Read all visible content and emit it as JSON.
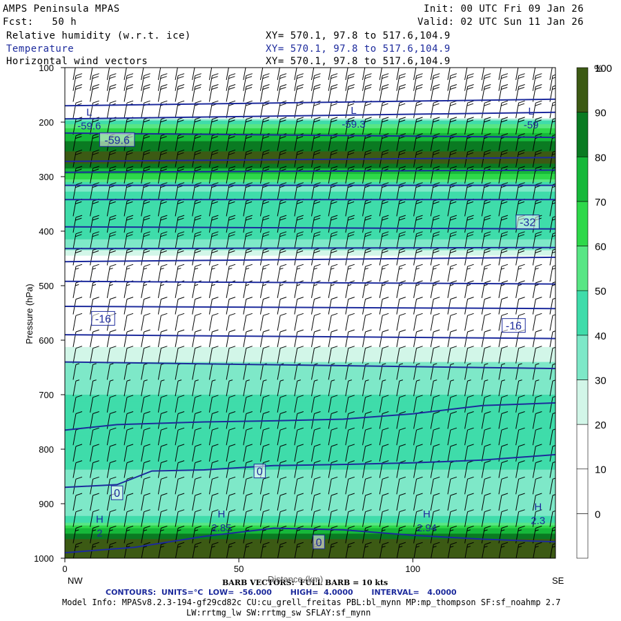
{
  "header": {
    "model": "AMPS Peninsula MPAS",
    "init": "Init: 00 UTC Fri 09 Jan 26",
    "fcst": "Fcst:   50 h",
    "valid": "Valid: 02 UTC Sun 11 Jan 26",
    "field1": "Relative humidity (w.r.t. ice)",
    "field2": "Temperature",
    "field3": "Horizontal wind vectors",
    "xy1": "XY= 570.1, 97.8 to 517.6,104.9",
    "xy2": "XY= 570.1, 97.8 to 517.6,104.9",
    "xy3": "XY= 570.1, 97.8 to 517.6,104.9"
  },
  "colors": {
    "temperature_contour": "#1c2a9c",
    "rh_scale": [
      "#ffffff",
      "#ffffff",
      "#ffffff",
      "#d2f6e8",
      "#7ee8c8",
      "#3fdcaa",
      "#58e684",
      "#2ed84a",
      "#16b83a",
      "#0a7a22",
      "#3c5a14"
    ]
  },
  "chart_data": {
    "type": "heatmap",
    "title": "Relative humidity (w.r.t. ice)",
    "ylabel": "Pressure (hPa)",
    "xlabel": "Distance (km)",
    "x_left_label": "NW",
    "x_right_label": "SE",
    "x_ticks": [
      0,
      50,
      100
    ],
    "xlim": [
      0,
      141
    ],
    "y_ticks": [
      100,
      200,
      300,
      400,
      500,
      600,
      700,
      800,
      900,
      1000
    ],
    "ylim": [
      1000,
      100
    ],
    "colorbar": {
      "unit": "%",
      "ticks": [
        0,
        10,
        20,
        30,
        40,
        50,
        60,
        70,
        80,
        90,
        100
      ],
      "levels": [
        0,
        10,
        20,
        30,
        40,
        50,
        60,
        70,
        80,
        90,
        100,
        110
      ]
    },
    "rh_profile": [
      {
        "p": 100,
        "rh": 15
      },
      {
        "p": 160,
        "rh": 10
      },
      {
        "p": 190,
        "rh": 25
      },
      {
        "p": 200,
        "rh": 55
      },
      {
        "p": 215,
        "rh": 75
      },
      {
        "p": 235,
        "rh": 90
      },
      {
        "p": 250,
        "rh": 97
      },
      {
        "p": 265,
        "rh": 105
      },
      {
        "p": 280,
        "rh": 97
      },
      {
        "p": 300,
        "rh": 75
      },
      {
        "p": 320,
        "rh": 45
      },
      {
        "p": 335,
        "rh": 55
      },
      {
        "p": 350,
        "rh": 60
      },
      {
        "p": 380,
        "rh": 58
      },
      {
        "p": 410,
        "rh": 52
      },
      {
        "p": 430,
        "rh": 45
      },
      {
        "p": 450,
        "rh": 22
      },
      {
        "p": 480,
        "rh": 12
      },
      {
        "p": 530,
        "rh": 5
      },
      {
        "p": 590,
        "rh": 12
      },
      {
        "p": 620,
        "rh": 35
      },
      {
        "p": 660,
        "rh": 44
      },
      {
        "p": 700,
        "rh": 50
      },
      {
        "p": 750,
        "rh": 55
      },
      {
        "p": 800,
        "rh": 55
      },
      {
        "p": 850,
        "rh": 48
      },
      {
        "p": 900,
        "rh": 42
      },
      {
        "p": 930,
        "rh": 52
      },
      {
        "p": 950,
        "rh": 85
      },
      {
        "p": 970,
        "rh": 105
      },
      {
        "p": 1000,
        "rh": 105
      }
    ],
    "temperature_contours": {
      "units": "°C",
      "low": -56.0,
      "high": 4.0,
      "interval": 4.0,
      "lines": [
        {
          "label": "-56",
          "x": [
            0,
            141
          ],
          "p": [
            170,
            158
          ]
        },
        {
          "label": "-52",
          "x": [
            0,
            141
          ],
          "p": [
            194,
            182
          ]
        },
        {
          "label": "-48",
          "x": [
            0,
            141
          ],
          "p": [
            220,
            228
          ]
        },
        {
          "label": "-44",
          "x": [
            0,
            141
          ],
          "p": [
            272,
            265
          ]
        },
        {
          "label": "-40",
          "x": [
            0,
            141
          ],
          "p": [
            292,
            288
          ]
        },
        {
          "label": "-36",
          "x": [
            0,
            141
          ],
          "p": [
            316,
            316
          ]
        },
        {
          "label": "-32",
          "x": [
            0,
            141
          ],
          "p": [
            342,
            342
          ]
        },
        {
          "label": "-28",
          "x": [
            0,
            141
          ],
          "p": [
            392,
            396
          ]
        },
        {
          "label": "-24",
          "x": [
            0,
            141
          ],
          "p": [
            432,
            430
          ]
        },
        {
          "label": "-20",
          "x": [
            0,
            141
          ],
          "p": [
            456,
            448
          ]
        },
        {
          "label": "-16",
          "x": [
            0,
            141
          ],
          "p": [
            492,
            497
          ]
        },
        {
          "label": "-12",
          "x": [
            0,
            141
          ],
          "p": [
            538,
            542
          ]
        },
        {
          "label": "-8",
          "x": [
            0,
            141
          ],
          "p": [
            590,
            597
          ]
        },
        {
          "label": "-4",
          "x": [
            0,
            141
          ],
          "p": [
            640,
            652
          ]
        },
        {
          "label": "0",
          "x": [
            0,
            15,
            40,
            60,
            80,
            100,
            120,
            141
          ],
          "p": [
            765,
            755,
            750,
            748,
            745,
            735,
            720,
            715
          ]
        },
        {
          "label": "0",
          "x": [
            0,
            15,
            25,
            40,
            60,
            80,
            100,
            120,
            141
          ],
          "p": [
            870,
            865,
            840,
            838,
            830,
            828,
            825,
            820,
            810
          ]
        },
        {
          "label": "4",
          "x": [
            0,
            20,
            40,
            60,
            80,
            100,
            120,
            141
          ],
          "p": [
            990,
            980,
            960,
            945,
            948,
            958,
            965,
            970
          ]
        }
      ],
      "box_labels": [
        {
          "text": "-59.6",
          "x": 15,
          "p": 232
        },
        {
          "text": "-32",
          "x": 133,
          "p": 383
        },
        {
          "text": "-16",
          "x": 11,
          "p": 560
        },
        {
          "text": "-16",
          "x": 129,
          "p": 573
        },
        {
          "text": "0",
          "x": 15,
          "p": 880
        },
        {
          "text": "0",
          "x": 56,
          "p": 840
        },
        {
          "text": "0",
          "x": 73,
          "p": 970
        }
      ],
      "extrema": [
        {
          "type": "L",
          "x": 7,
          "p": 188,
          "value": "-59.6"
        },
        {
          "type": "L",
          "x": 83,
          "p": 185,
          "value": "-59.3"
        },
        {
          "type": "L",
          "x": 134,
          "p": 186,
          "value": "-59"
        },
        {
          "type": "H",
          "x": 10,
          "p": 935,
          "value": "2"
        },
        {
          "type": "H",
          "x": 45,
          "p": 925,
          "value": "2.85"
        },
        {
          "type": "H",
          "x": 104,
          "p": 925,
          "value": "2.94"
        },
        {
          "type": "H",
          "x": 136,
          "p": 912,
          "value": "2.3"
        }
      ]
    },
    "wind_barbs": {
      "columns": 29,
      "levels_hPa": [
        110,
        130,
        150,
        180,
        210,
        240,
        270,
        300,
        330,
        360,
        390,
        420,
        450,
        480,
        510,
        540,
        570,
        600,
        630,
        660,
        690,
        720,
        750,
        780,
        810,
        840,
        870,
        900,
        930,
        960,
        990
      ],
      "speed_kts_by_level": [
        20,
        20,
        20,
        20,
        20,
        20,
        20,
        20,
        20,
        20,
        20,
        20,
        20,
        15,
        15,
        10,
        10,
        10,
        10,
        5,
        5,
        10,
        10,
        10,
        10,
        10,
        10,
        10,
        10,
        15,
        15
      ],
      "note_barb": "BARB VECTORS:  FULL BARB = 10 kts"
    }
  },
  "footer": {
    "barb_note": "BARB VECTORS:  FULL BARB = 10 kts",
    "axis_label": "Distance (km)",
    "contours": "CONTOURS:  UNITS=°C  LOW=  -56.000       HIGH=  4.0000       INTERVAL=   4.0000",
    "model_info": "Model Info: MPASv8.2.3-194-gf29cd82c CU:cu_grell_freitas PBL:bl_mynn MP:mp_thompson SF:sf_noahmp 2.7",
    "model_info2": "LW:rrtmg_lw SW:rrtmg_sw SFLAY:sf_mynn"
  }
}
